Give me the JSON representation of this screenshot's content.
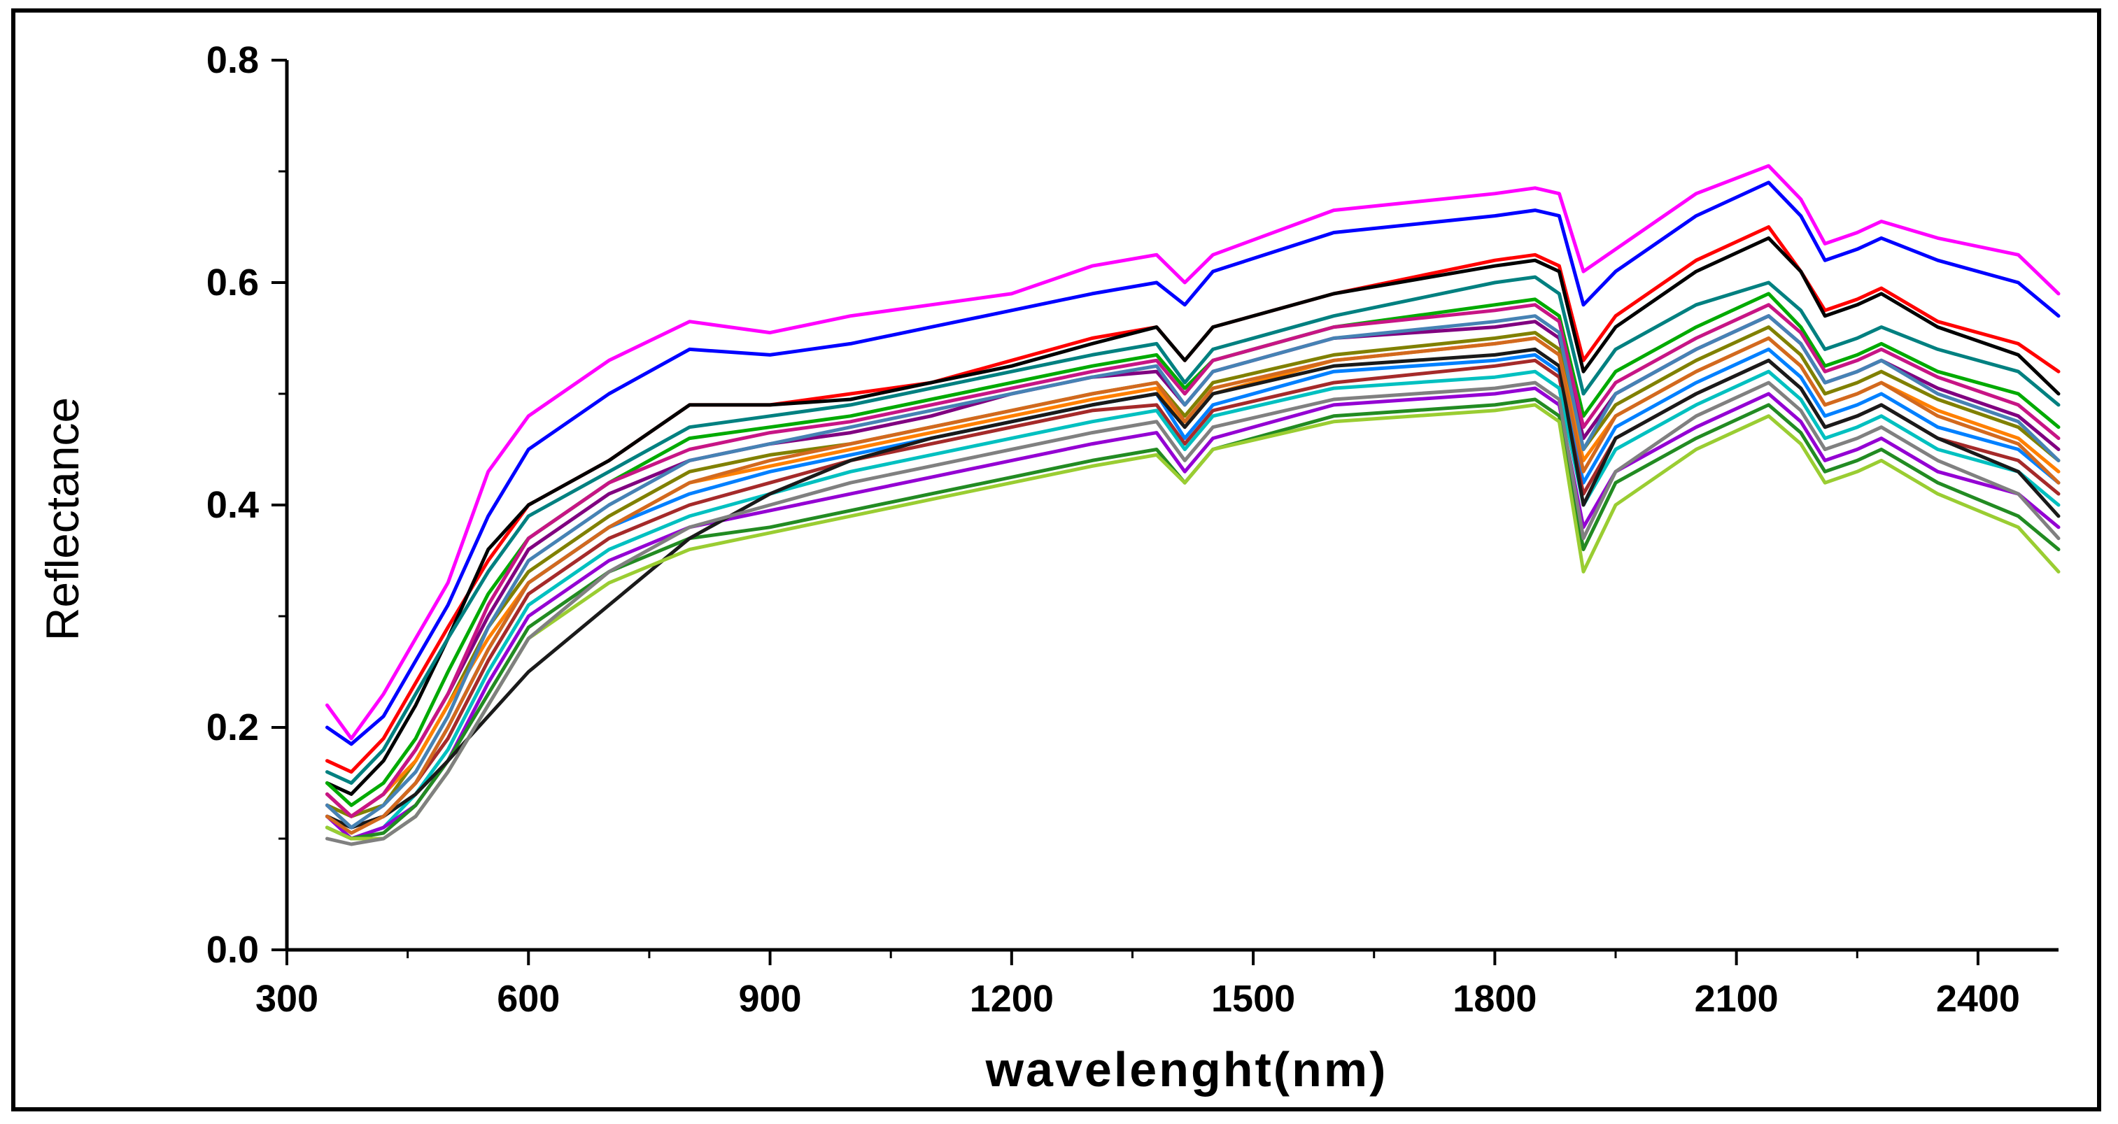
{
  "chart_data": {
    "type": "line",
    "title": "",
    "xlabel": "wavelenght(nm)",
    "ylabel": "Reflectance",
    "xlim": [
      300,
      2500
    ],
    "ylim": [
      0.0,
      0.8
    ],
    "x_ticks": [
      "300",
      "600",
      "900",
      "1200",
      "1500",
      "1800",
      "2100",
      "2400"
    ],
    "y_ticks": [
      "0.0",
      "0.2",
      "0.4",
      "0.6",
      "0.8"
    ],
    "grid": false,
    "legend": "none",
    "x": [
      350,
      380,
      420,
      460,
      500,
      550,
      600,
      700,
      800,
      900,
      1000,
      1100,
      1200,
      1300,
      1380,
      1415,
      1450,
      1600,
      1800,
      1850,
      1880,
      1910,
      1950,
      2050,
      2140,
      2180,
      2210,
      2250,
      2280,
      2350,
      2450,
      2500
    ],
    "series": [
      {
        "color": "#ff00ff",
        "values": [
          0.22,
          0.19,
          0.23,
          0.28,
          0.33,
          0.43,
          0.48,
          0.53,
          0.565,
          0.555,
          0.57,
          0.58,
          0.59,
          0.615,
          0.625,
          0.6,
          0.625,
          0.665,
          0.68,
          0.685,
          0.68,
          0.61,
          0.63,
          0.68,
          0.705,
          0.675,
          0.635,
          0.645,
          0.655,
          0.64,
          0.625,
          0.59
        ]
      },
      {
        "color": "#0000ff",
        "values": [
          0.2,
          0.185,
          0.21,
          0.26,
          0.31,
          0.39,
          0.45,
          0.5,
          0.54,
          0.535,
          0.545,
          0.56,
          0.575,
          0.59,
          0.6,
          0.58,
          0.61,
          0.645,
          0.66,
          0.665,
          0.66,
          0.58,
          0.61,
          0.66,
          0.69,
          0.66,
          0.62,
          0.63,
          0.64,
          0.62,
          0.6,
          0.57
        ]
      },
      {
        "color": "#ff0000",
        "values": [
          0.17,
          0.16,
          0.19,
          0.24,
          0.29,
          0.35,
          0.4,
          0.44,
          0.49,
          0.49,
          0.5,
          0.51,
          0.53,
          0.55,
          0.56,
          0.53,
          0.56,
          0.59,
          0.62,
          0.625,
          0.615,
          0.53,
          0.57,
          0.62,
          0.65,
          0.61,
          0.575,
          0.585,
          0.595,
          0.565,
          0.545,
          0.52
        ]
      },
      {
        "color": "#000000",
        "values": [
          0.15,
          0.14,
          0.17,
          0.22,
          0.28,
          0.36,
          0.4,
          0.44,
          0.49,
          0.49,
          0.495,
          0.51,
          0.525,
          0.545,
          0.56,
          0.53,
          0.56,
          0.59,
          0.615,
          0.62,
          0.61,
          0.52,
          0.56,
          0.61,
          0.64,
          0.61,
          0.57,
          0.58,
          0.59,
          0.56,
          0.535,
          0.5
        ]
      },
      {
        "color": "#008080",
        "values": [
          0.16,
          0.15,
          0.18,
          0.23,
          0.28,
          0.34,
          0.39,
          0.43,
          0.47,
          0.48,
          0.49,
          0.505,
          0.52,
          0.535,
          0.545,
          0.51,
          0.54,
          0.57,
          0.6,
          0.605,
          0.59,
          0.5,
          0.54,
          0.58,
          0.6,
          0.575,
          0.54,
          0.55,
          0.56,
          0.54,
          0.52,
          0.49
        ]
      },
      {
        "color": "#00aa00",
        "values": [
          0.15,
          0.13,
          0.15,
          0.19,
          0.25,
          0.32,
          0.37,
          0.42,
          0.46,
          0.47,
          0.48,
          0.495,
          0.51,
          0.525,
          0.535,
          0.505,
          0.53,
          0.56,
          0.58,
          0.585,
          0.57,
          0.48,
          0.52,
          0.56,
          0.59,
          0.56,
          0.525,
          0.535,
          0.545,
          0.52,
          0.5,
          0.47
        ]
      },
      {
        "color": "#800080",
        "values": [
          0.14,
          0.12,
          0.14,
          0.18,
          0.23,
          0.3,
          0.36,
          0.41,
          0.44,
          0.455,
          0.465,
          0.48,
          0.5,
          0.515,
          0.52,
          0.49,
          0.52,
          0.55,
          0.56,
          0.565,
          0.55,
          0.46,
          0.5,
          0.54,
          0.57,
          0.545,
          0.51,
          0.52,
          0.53,
          0.505,
          0.48,
          0.45
        ]
      },
      {
        "color": "#808000",
        "values": [
          0.13,
          0.12,
          0.13,
          0.17,
          0.22,
          0.29,
          0.34,
          0.39,
          0.43,
          0.445,
          0.455,
          0.47,
          0.485,
          0.5,
          0.51,
          0.48,
          0.51,
          0.535,
          0.55,
          0.555,
          0.54,
          0.45,
          0.49,
          0.53,
          0.56,
          0.535,
          0.5,
          0.51,
          0.52,
          0.495,
          0.47,
          0.44
        ]
      },
      {
        "color": "#ff8000",
        "values": [
          0.14,
          0.12,
          0.14,
          0.17,
          0.22,
          0.28,
          0.33,
          0.38,
          0.42,
          0.435,
          0.45,
          0.465,
          0.48,
          0.495,
          0.505,
          0.47,
          0.5,
          0.53,
          0.545,
          0.55,
          0.535,
          0.44,
          0.48,
          0.52,
          0.55,
          0.525,
          0.49,
          0.5,
          0.51,
          0.485,
          0.46,
          0.43
        ]
      },
      {
        "color": "#0080ff",
        "values": [
          0.12,
          0.11,
          0.12,
          0.15,
          0.2,
          0.27,
          0.33,
          0.38,
          0.41,
          0.43,
          0.445,
          0.46,
          0.475,
          0.49,
          0.5,
          0.46,
          0.49,
          0.52,
          0.53,
          0.535,
          0.52,
          0.42,
          0.47,
          0.51,
          0.54,
          0.515,
          0.48,
          0.49,
          0.5,
          0.47,
          0.45,
          0.42
        ]
      },
      {
        "color": "#a52a2a",
        "values": [
          0.13,
          0.11,
          0.12,
          0.15,
          0.19,
          0.26,
          0.32,
          0.37,
          0.4,
          0.42,
          0.44,
          0.455,
          0.47,
          0.485,
          0.49,
          0.455,
          0.485,
          0.51,
          0.525,
          0.53,
          0.515,
          0.41,
          0.46,
          0.5,
          0.53,
          0.505,
          0.47,
          0.48,
          0.49,
          0.46,
          0.44,
          0.41
        ]
      },
      {
        "color": "#00c0c0",
        "values": [
          0.11,
          0.1,
          0.11,
          0.14,
          0.18,
          0.25,
          0.31,
          0.36,
          0.39,
          0.41,
          0.43,
          0.445,
          0.46,
          0.475,
          0.485,
          0.45,
          0.48,
          0.505,
          0.515,
          0.52,
          0.505,
          0.4,
          0.45,
          0.49,
          0.52,
          0.495,
          0.46,
          0.47,
          0.48,
          0.45,
          0.43,
          0.4
        ]
      },
      {
        "color": "#9400d3",
        "values": [
          0.12,
          0.1,
          0.11,
          0.13,
          0.17,
          0.24,
          0.3,
          0.35,
          0.38,
          0.395,
          0.41,
          0.425,
          0.44,
          0.455,
          0.465,
          0.43,
          0.46,
          0.49,
          0.5,
          0.505,
          0.49,
          0.38,
          0.43,
          0.47,
          0.5,
          0.475,
          0.44,
          0.45,
          0.46,
          0.43,
          0.41,
          0.38
        ]
      },
      {
        "color": "#228b22",
        "values": [
          0.11,
          0.1,
          0.105,
          0.13,
          0.17,
          0.23,
          0.29,
          0.34,
          0.37,
          0.38,
          0.395,
          0.41,
          0.425,
          0.44,
          0.45,
          0.42,
          0.45,
          0.48,
          0.49,
          0.495,
          0.48,
          0.36,
          0.42,
          0.46,
          0.49,
          0.465,
          0.43,
          0.44,
          0.45,
          0.42,
          0.39,
          0.36
        ]
      },
      {
        "color": "#1a1a1a",
        "values": [
          0.12,
          0.11,
          0.12,
          0.14,
          0.17,
          0.21,
          0.25,
          0.31,
          0.37,
          0.41,
          0.44,
          0.46,
          0.475,
          0.49,
          0.5,
          0.47,
          0.5,
          0.525,
          0.535,
          0.54,
          0.525,
          0.4,
          0.46,
          0.5,
          0.53,
          0.505,
          0.47,
          0.48,
          0.49,
          0.46,
          0.43,
          0.39
        ]
      },
      {
        "color": "#9acd32",
        "values": [
          0.11,
          0.1,
          0.1,
          0.12,
          0.16,
          0.22,
          0.28,
          0.33,
          0.36,
          0.375,
          0.39,
          0.405,
          0.42,
          0.435,
          0.445,
          0.42,
          0.45,
          0.475,
          0.485,
          0.49,
          0.475,
          0.34,
          0.4,
          0.45,
          0.48,
          0.455,
          0.42,
          0.43,
          0.44,
          0.41,
          0.38,
          0.34
        ]
      },
      {
        "color": "#808080",
        "values": [
          0.1,
          0.095,
          0.1,
          0.12,
          0.16,
          0.22,
          0.28,
          0.34,
          0.38,
          0.4,
          0.42,
          0.435,
          0.45,
          0.465,
          0.475,
          0.44,
          0.47,
          0.495,
          0.505,
          0.51,
          0.495,
          0.37,
          0.43,
          0.48,
          0.51,
          0.485,
          0.45,
          0.46,
          0.47,
          0.44,
          0.41,
          0.37
        ]
      },
      {
        "color": "#c71585",
        "values": [
          0.14,
          0.12,
          0.14,
          0.18,
          0.23,
          0.31,
          0.37,
          0.42,
          0.45,
          0.465,
          0.475,
          0.49,
          0.505,
          0.52,
          0.53,
          0.5,
          0.53,
          0.56,
          0.575,
          0.58,
          0.565,
          0.47,
          0.51,
          0.55,
          0.58,
          0.555,
          0.52,
          0.53,
          0.54,
          0.515,
          0.49,
          0.46
        ]
      },
      {
        "color": "#4682b4",
        "values": [
          0.13,
          0.11,
          0.13,
          0.16,
          0.21,
          0.29,
          0.35,
          0.4,
          0.44,
          0.455,
          0.47,
          0.485,
          0.5,
          0.515,
          0.525,
          0.49,
          0.52,
          0.55,
          0.565,
          0.57,
          0.555,
          0.45,
          0.5,
          0.54,
          0.57,
          0.545,
          0.51,
          0.52,
          0.53,
          0.5,
          0.475,
          0.44
        ]
      },
      {
        "color": "#d2691e",
        "values": [
          0.12,
          0.105,
          0.12,
          0.15,
          0.2,
          0.27,
          0.33,
          0.38,
          0.42,
          0.44,
          0.455,
          0.47,
          0.485,
          0.5,
          0.51,
          0.475,
          0.505,
          0.53,
          0.545,
          0.55,
          0.535,
          0.43,
          0.48,
          0.52,
          0.55,
          0.525,
          0.49,
          0.5,
          0.51,
          0.48,
          0.455,
          0.42
        ]
      }
    ]
  }
}
